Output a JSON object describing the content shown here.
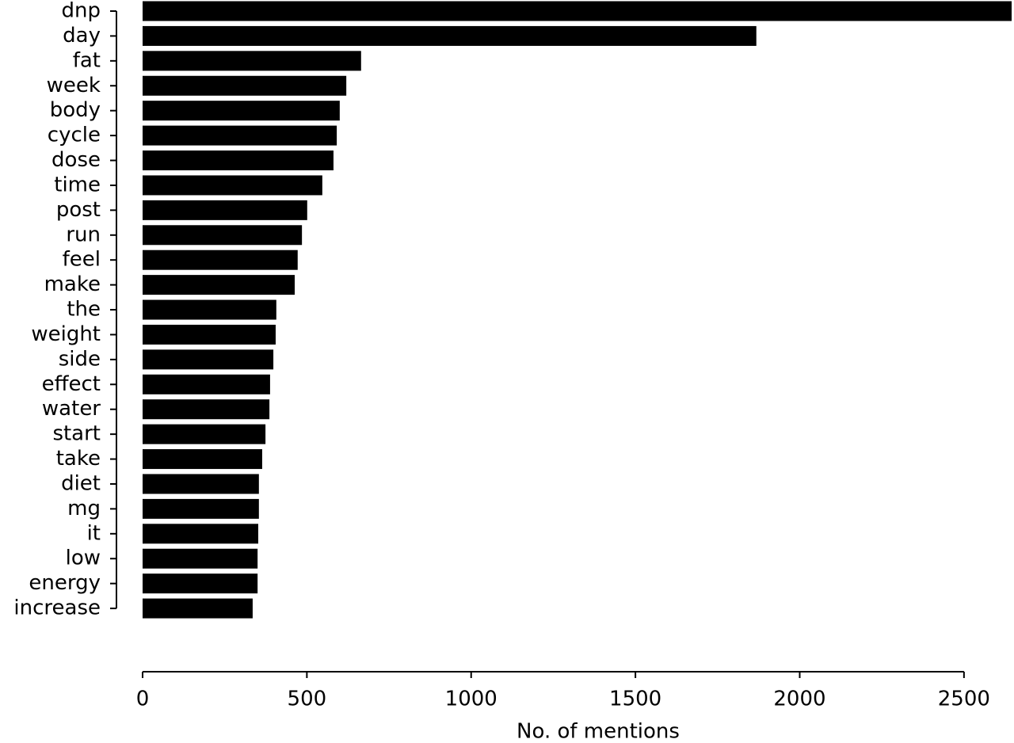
{
  "chart_data": {
    "type": "barh",
    "xlabel": "No. of mentions",
    "categories": [
      "dnp",
      "day",
      "fat",
      "week",
      "body",
      "cycle",
      "dose",
      "time",
      "post",
      "run",
      "feel",
      "make",
      "the",
      "weight",
      "side",
      "effect",
      "water",
      "start",
      "take",
      "diet",
      "mg",
      "it",
      "low",
      "energy",
      "increase"
    ],
    "values": [
      2645,
      1868,
      665,
      620,
      600,
      591,
      581,
      547,
      501,
      485,
      472,
      463,
      407,
      405,
      398,
      388,
      386,
      374,
      364,
      354,
      354,
      352,
      350,
      350,
      335
    ],
    "color": "#000000",
    "xlim": [
      0,
      2645
    ],
    "xticks": [
      0,
      500,
      1000,
      1500,
      2000,
      2500
    ]
  }
}
